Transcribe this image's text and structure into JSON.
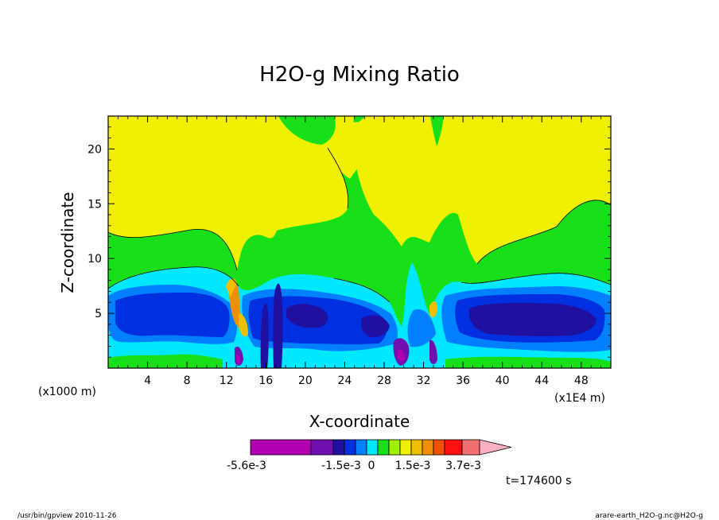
{
  "chart_data": {
    "type": "heatmap",
    "title": "H2O-g Mixing Ratio",
    "xlabel": "X-coordinate",
    "ylabel": "Z-coordinate",
    "x_unit_left": "(x1000 m)",
    "x_unit_right": "(x1E4 m)",
    "xlim": [
      0,
      51
    ],
    "ylim": [
      0,
      23
    ],
    "x_ticks": [
      4,
      8,
      12,
      16,
      20,
      24,
      28,
      32,
      36,
      40,
      44,
      48
    ],
    "y_ticks": [
      5,
      10,
      15,
      20
    ],
    "colorbar": {
      "colors": [
        "#b000b0",
        "#7010b0",
        "#2010a0",
        "#0030e0",
        "#0080ff",
        "#00e8ff",
        "#18e018",
        "#a0f000",
        "#f0f000",
        "#f0c000",
        "#f09000",
        "#f05000",
        "#ff1010",
        "#f07070",
        "#ffb0c0"
      ],
      "labels": [
        "-5.6e-3",
        "-1.5e-3",
        "0",
        "1.5e-3",
        "3.7e-3"
      ]
    },
    "time_label": "t=174600 s",
    "footer_left": "/usr/bin/gpview   2010-11-26",
    "footer_right": "arare-earth_H2O-g.nc@H2O-g"
  }
}
